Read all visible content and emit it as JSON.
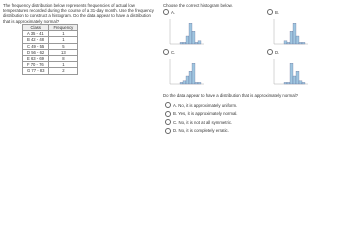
{
  "left": {
    "prompt": "The frequency distribution below represents frequencies of actual low temperatures recorded during the course of a 31-day month. Use the frequency distribution to construct a histogram. Do the data appear to have a distribution that is approximately normal?",
    "table": {
      "headers": [
        "Class",
        "Frequency"
      ],
      "rows": [
        [
          "A  35 - 41",
          "1"
        ],
        [
          "B  42 - 48",
          "1"
        ],
        [
          "C  49 - 55",
          "5"
        ],
        [
          "D  56 - 62",
          "13"
        ],
        [
          "E  63 - 69",
          "8"
        ],
        [
          "F  70 - 76",
          "1"
        ],
        [
          "G  77 - 83",
          "2"
        ]
      ]
    }
  },
  "right": {
    "instruction": "Choose the correct histogram below.",
    "histogram_options": [
      "A.",
      "B.",
      "C.",
      "D."
    ],
    "question": "Do the data appear to have a distribution that is approximately normal?",
    "answers": [
      "A.  No, it is approximately uniform.",
      "B.  Yes, it is approximately normal.",
      "C.  No, it is not at all symmetric.",
      "D.  No, it is completely erratic."
    ]
  }
}
